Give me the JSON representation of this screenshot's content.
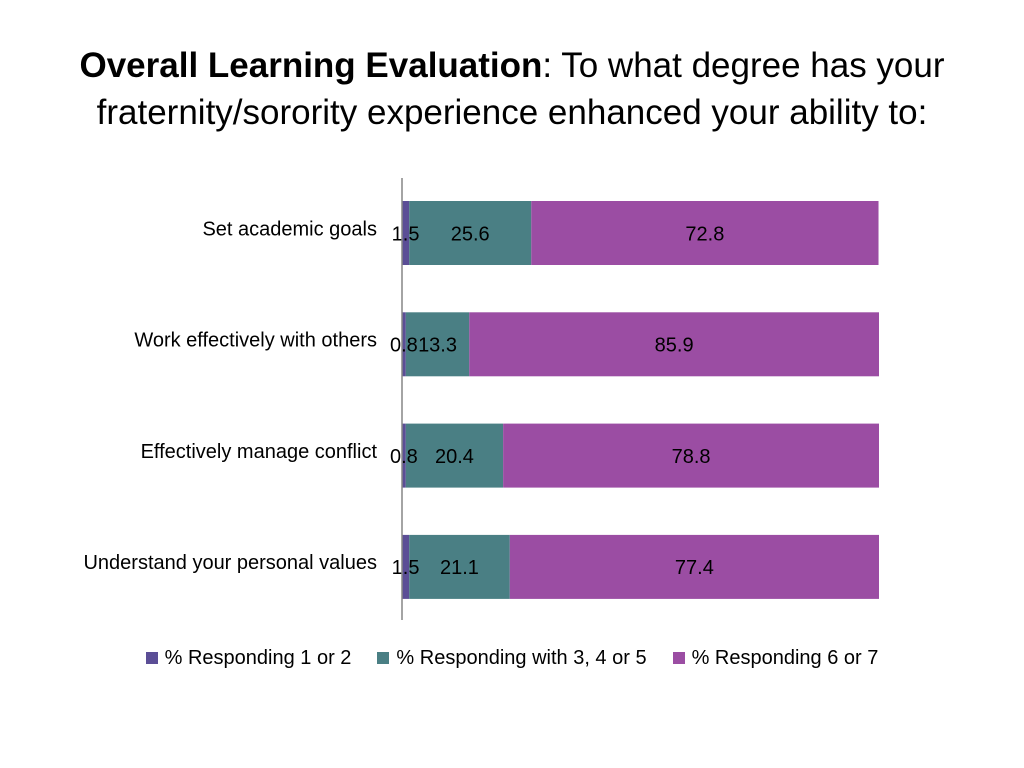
{
  "title": {
    "bold": "Overall Learning Evaluation",
    "rest": ":  To what degree has your fraternity/sorority experience enhanced your ability to:"
  },
  "chart_data": {
    "type": "bar",
    "orientation": "horizontal",
    "stacked": true,
    "categories": [
      "Set academic goals",
      "Work effectively with others",
      "Effectively manage conflict",
      "Understand your personal values"
    ],
    "series": [
      {
        "name": "% Responding 1 or 2",
        "color": "#5B4E96",
        "values": [
          1.5,
          0.8,
          0.8,
          1.5
        ],
        "labels": [
          "1.5",
          "0.8",
          "0.8",
          "1.5"
        ]
      },
      {
        "name": "% Responding with 3, 4 or 5",
        "color": "#4A7F84",
        "values": [
          25.6,
          13.3,
          20.4,
          21.1
        ],
        "labels": [
          "25.6",
          "13.3",
          "20.4",
          "21.1"
        ]
      },
      {
        "name": "% Responding 6 or 7",
        "color": "#9B4DA3",
        "values": [
          72.8,
          85.9,
          78.8,
          77.4
        ],
        "labels": [
          "72.8",
          "85.9",
          "78.8",
          "77.4"
        ]
      }
    ],
    "xlim": [
      0,
      100
    ],
    "grid": false,
    "legend_position": "bottom"
  }
}
